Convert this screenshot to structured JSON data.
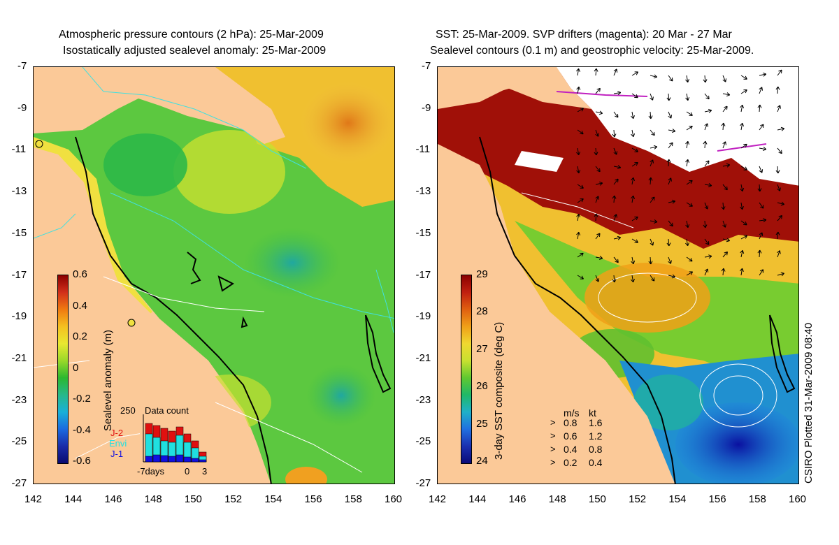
{
  "left_panel": {
    "title_line1": "Atmospheric pressure contours (2 hPa): 25-Mar-2009",
    "title_line2": "Isostatically adjusted sealevel anomaly: 25-Mar-2009",
    "colorbar_label": "Sealevel anomaly (m)",
    "colorbar_ticks": [
      "0.6",
      "0.4",
      "0.2",
      "0",
      "-0.2",
      "-0.4",
      "-0.6"
    ],
    "colorbar_colors": [
      "#8b0000",
      "#d2301a",
      "#f07a10",
      "#f5c020",
      "#e8e830",
      "#9ad82a",
      "#2cb830",
      "#27b88a",
      "#1ab0d8",
      "#1a6ae0",
      "#1a2ca8",
      "#0a0a70"
    ],
    "inset": {
      "title": "Data count",
      "y_max_label": "250",
      "x_labels": [
        "-7days",
        "0",
        "3"
      ],
      "missions": [
        "J-2",
        "Envi",
        "J-1"
      ],
      "mission_colors": [
        "#e01010",
        "#20e0e0",
        "#1010e0"
      ]
    }
  },
  "right_panel": {
    "title_line1": "SST: 25-Mar-2009. SVP drifters (magenta): 20 Mar - 27 Mar",
    "title_line2": "Sealevel contours (0.1 m) and geostrophic velocity: 25-Mar-2009.",
    "colorbar_label": "3-day SST composite (deg C)",
    "colorbar_ticks": [
      "29",
      "28",
      "27",
      "26",
      "25",
      "24"
    ],
    "colorbar_colors": [
      "#8b0000",
      "#c02010",
      "#e06010",
      "#f0a018",
      "#f0d830",
      "#c8e030",
      "#60c830",
      "#20b868",
      "#20b0c8",
      "#2070e0",
      "#1a30b0",
      "#0a0a78"
    ],
    "speed_legend": {
      "header_ms": "m/s",
      "header_kt": "kt",
      "rows": [
        {
          "ms": "0.8",
          "kt": "1.6"
        },
        {
          "ms": "0.6",
          "kt": "1.2"
        },
        {
          "ms": "0.4",
          "kt": "0.8"
        },
        {
          "ms": "0.2",
          "kt": "0.4"
        }
      ]
    }
  },
  "axes": {
    "y_ticks": [
      "-7",
      "-9",
      "-11",
      "-13",
      "-15",
      "-17",
      "-19",
      "-21",
      "-23",
      "-25",
      "-27"
    ],
    "x_ticks": [
      "142",
      "144",
      "146",
      "148",
      "150",
      "152",
      "154",
      "156",
      "158",
      "160"
    ]
  },
  "credit": "CSIRO Plotted 31-Mar-2009 08:40",
  "colors": {
    "land": "#fbc998",
    "ocean_low": "#1a40c0",
    "ocean_mid": "#3cc040",
    "ocean_high": "#e8a020",
    "contour_cyan": "#40e0e0",
    "contour_white": "#ffffff"
  }
}
